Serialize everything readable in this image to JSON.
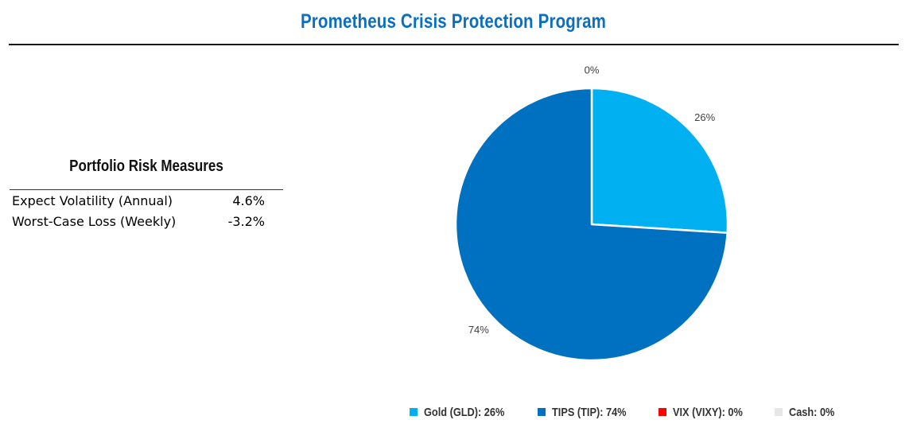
{
  "header": {
    "title": "Prometheus Crisis Protection Program"
  },
  "risk": {
    "heading": "Portfolio Risk Measures",
    "rows": [
      {
        "label": "Expect Volatility (Annual)",
        "value": "4.6%"
      },
      {
        "label": "Worst-Case Loss (Weekly)",
        "value": "-3.2%"
      }
    ]
  },
  "chart_data": {
    "type": "pie",
    "title": "",
    "slices": [
      {
        "name": "Gold (GLD)",
        "value": 26,
        "label": "26%",
        "legend": "Gold (GLD): 26%",
        "color": "#00b0f0"
      },
      {
        "name": "TIPS (TIP)",
        "value": 74,
        "label": "74%",
        "legend": "TIPS (TIP): 74%",
        "color": "#0070c0"
      },
      {
        "name": "VIX (VIXY)",
        "value": 0,
        "label": "0%",
        "legend": "VIX (VIXY): 0%",
        "color": "#ff0000"
      },
      {
        "name": "Cash",
        "value": 0,
        "label": "0%",
        "legend": "Cash: 0%",
        "color": "#e7e6e6"
      }
    ],
    "legend_position": "bottom",
    "data_label_color": "#404040"
  }
}
